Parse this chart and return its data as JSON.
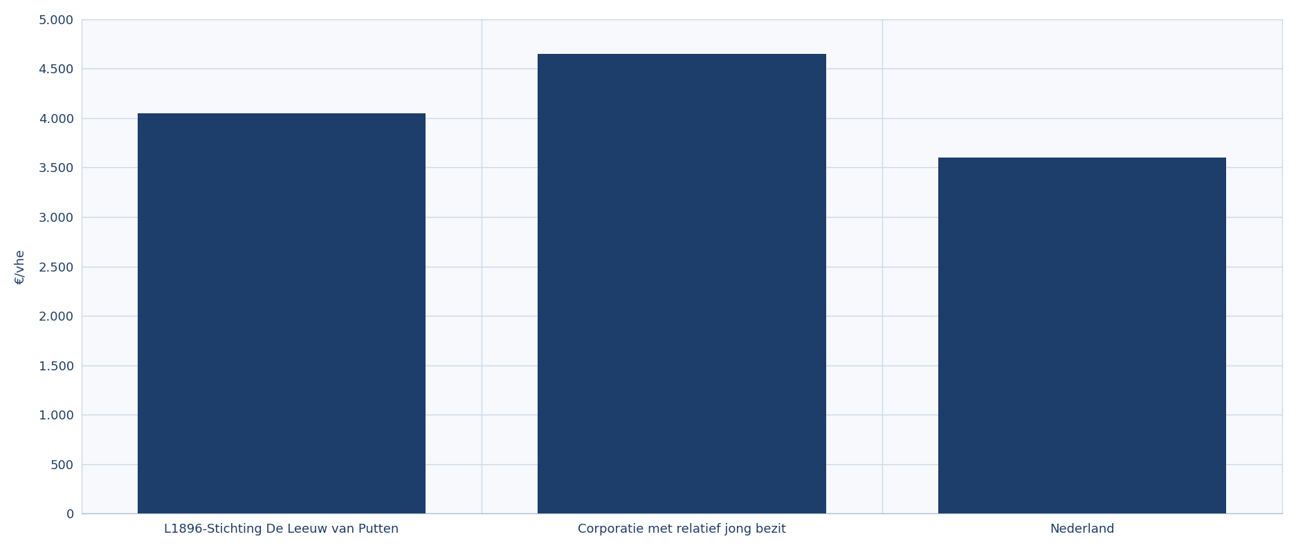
{
  "categories": [
    "L1896-Stichting De Leeuw van Putten",
    "Corporatie met relatief jong bezit",
    "Nederland"
  ],
  "values": [
    4050,
    4650,
    3600
  ],
  "bar_color": "#1d3d6b",
  "ylabel": "€/vhe",
  "ylim": [
    0,
    5000
  ],
  "yticks": [
    0,
    500,
    1000,
    1500,
    2000,
    2500,
    3000,
    3500,
    4000,
    4500,
    5000
  ],
  "background_color": "#ffffff",
  "plot_bg_color": "#f7f9fc",
  "grid_color": "#ccd8e5",
  "tick_label_color": "#1d3d6b",
  "axis_color": "#b0c0d0",
  "bar_width": 0.72,
  "vline_positions": [
    0.5,
    1.5
  ]
}
